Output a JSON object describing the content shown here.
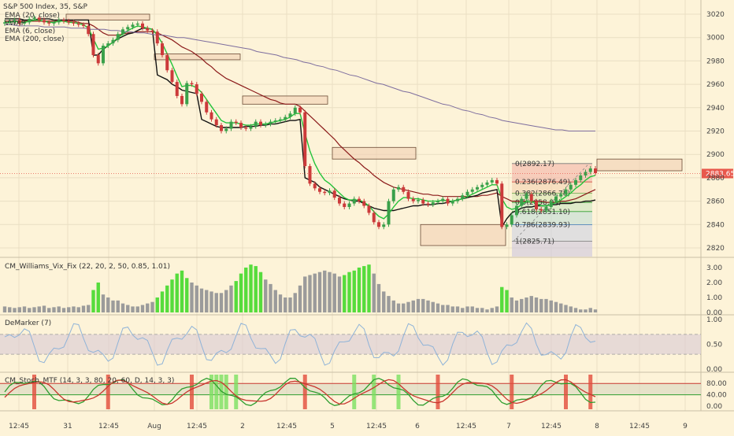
{
  "colors": {
    "background": "#fdf3d8",
    "grid": "#eadfc3",
    "up": "#3aa04a",
    "down": "#cc3a3a",
    "ema20": "#8b1a1a",
    "vwap": "#111111",
    "ema6": "#22c33a",
    "ema200": "#7d6d9e",
    "zone": "#f1ccb0",
    "price_tag": "#e8584c",
    "vix_green": "#56dc3c",
    "vix_gray": "#9b9b9b",
    "demarker": "#8fb3d8",
    "demarker_band": "#d9c9d6",
    "stoch_k": "#2f9e2f",
    "stoch_d": "#c8362e",
    "stoch_band": "#d9d7c0"
  },
  "legend": {
    "symbol": "S&P 500 Index, 35, S&P",
    "ema20": "EMA (20, close)",
    "vwap": "VWAP",
    "ema6": "EMA (6, close)",
    "ema200": "EMA (200, close)"
  },
  "price_tag": "2883.65",
  "fib_labels": [
    "0(2892.17)",
    "0.236(2876.49)",
    "0.382(2866.78)",
    "0.5(2858.94)",
    "0.618(2851.10)",
    "0.786(2839.93)",
    "1(2825.71)"
  ],
  "panels": {
    "vix": {
      "title": "CM_Williams_Vix_Fix (22, 20, 2, 50, 0.85, 1.01)",
      "ticks": [
        "3.00",
        "2.00",
        "1.00",
        "0.00"
      ]
    },
    "demarker": {
      "title": "DeMarker (7)",
      "ticks": [
        "1.00",
        "0.50",
        "0.00"
      ]
    },
    "stoch": {
      "title": "CM_Stoch_MTF (14, 3, 3, 80, 20, 60, D, 14, 3, 3)",
      "ticks": [
        "80.00",
        "40.00",
        "0.00"
      ]
    }
  },
  "chart_data": {
    "type": "candlestick",
    "symbol": "S&P 500 Index, 35, S&P",
    "price_axis": [
      3020,
      3000,
      2980,
      2960,
      2940,
      2920,
      2900,
      2880,
      2860,
      2840,
      2820
    ],
    "time_labels": [
      "12:45",
      "31",
      "12:45",
      "Aug",
      "12:45",
      "2",
      "12:45",
      "5",
      "12:45",
      "6",
      "12:45",
      "7",
      "12:45",
      "8",
      "12:45",
      "9"
    ],
    "last_price": 2883.65,
    "close": [
      3013,
      3014,
      3015,
      3012,
      3013,
      3016,
      3017,
      3015,
      3013,
      3012,
      3013,
      3015,
      3014,
      3013,
      3012,
      3011,
      3010,
      3003,
      2985,
      2978,
      2993,
      2995,
      2998,
      3003,
      3007,
      3009,
      3011,
      3012,
      3008,
      3006,
      3005,
      2995,
      2985,
      2972,
      2962,
      2950,
      2943,
      2961,
      2960,
      2952,
      2945,
      2936,
      2930,
      2925,
      2920,
      2922,
      2928,
      2927,
      2923,
      2922,
      2924,
      2928,
      2925,
      2926,
      2928,
      2929,
      2930,
      2932,
      2935,
      2940,
      2936,
      2890,
      2875,
      2871,
      2868,
      2867,
      2869,
      2863,
      2858,
      2855,
      2858,
      2862,
      2860,
      2856,
      2850,
      2842,
      2838,
      2840,
      2860,
      2870,
      2872,
      2868,
      2862,
      2860,
      2861,
      2858,
      2857,
      2859,
      2860,
      2862,
      2858,
      2860,
      2862,
      2865,
      2868,
      2870,
      2872,
      2874,
      2876,
      2878,
      2875,
      2838,
      2840,
      2848,
      2856,
      2862,
      2866,
      2860,
      2853,
      2852,
      2855,
      2860,
      2864,
      2866,
      2870,
      2874,
      2878,
      2882,
      2885,
      2888,
      2884
    ],
    "series": [
      {
        "name": "EMA (20, close)",
        "values": [
          3014,
          3014,
          3014,
          3014,
          3014,
          3014,
          3014,
          3014,
          3014,
          3014,
          3014,
          3014,
          3014,
          3014,
          3014,
          3013,
          3012,
          3012,
          3010,
          3007,
          3004,
          3002,
          3002,
          3002,
          3003,
          3004,
          3004,
          3005,
          3005,
          3005,
          3005,
          3004,
          3002,
          3000,
          2998,
          2995,
          2992,
          2990,
          2988,
          2985,
          2982,
          2978,
          2975,
          2971,
          2968,
          2965,
          2963,
          2961,
          2959,
          2957,
          2955,
          2953,
          2951,
          2949,
          2947,
          2946,
          2944,
          2943,
          2943,
          2943,
          2941,
          2937,
          2933,
          2929,
          2925,
          2921,
          2917,
          2913,
          2908,
          2904,
          2900,
          2896,
          2893,
          2889,
          2886,
          2882,
          2879,
          2876,
          2874,
          2872,
          2871,
          2870,
          2869,
          2868,
          2867,
          2866,
          2866,
          2865,
          2865,
          2864,
          2864,
          2864,
          2864,
          2864,
          2864,
          2864,
          2864,
          2865,
          2865,
          2866,
          2867,
          2864,
          2862,
          2860,
          2860,
          2860,
          2860,
          2860,
          2860,
          2860,
          2859,
          2859,
          2859,
          2860,
          2860,
          2861,
          2862,
          2864,
          2866,
          2868,
          2870
        ]
      },
      {
        "name": "VWAP",
        "values": [
          3016,
          3016,
          3016,
          3016,
          3015,
          3015,
          3015,
          3016,
          3016,
          3016,
          3015,
          3015,
          3015,
          3015,
          3015,
          3015,
          3015,
          3015,
          2985,
          2985,
          2990,
          2993,
          2996,
          2999,
          3001,
          3003,
          3004,
          3006,
          3008,
          3008,
          3007,
          2968,
          2966,
          2964,
          2960,
          2958,
          2955,
          2954,
          2953,
          2952,
          2930,
          2928,
          2926,
          2924,
          2923,
          2923,
          2923,
          2923,
          2923,
          2924,
          2924,
          2924,
          2925,
          2925,
          2926,
          2926,
          2927,
          2928,
          2929,
          2929,
          2930,
          2880,
          2878,
          2876,
          2872,
          2870,
          2868,
          2866,
          2864,
          2862,
          2861,
          2860,
          2860,
          2858,
          2856,
          2854,
          2853,
          2852,
          2852,
          2852,
          2853,
          2854,
          2855,
          2856,
          2856,
          2857,
          2857,
          2857,
          2858,
          2858,
          2859,
          2860,
          2861,
          2862,
          2863,
          2864,
          2865,
          2867,
          2868,
          2869,
          2870,
          2838,
          2845,
          2850,
          2852,
          2854,
          2855,
          2855,
          2856,
          2856,
          2856,
          2857,
          2857,
          2858,
          2858,
          2858,
          2859,
          2859,
          2860,
          2860,
          2861
        ]
      },
      {
        "name": "EMA (6, close)",
        "values": [
          3013,
          3013,
          3014,
          3013,
          3013,
          3014,
          3015,
          3015,
          3014,
          3013,
          3013,
          3014,
          3014,
          3013,
          3013,
          3012,
          3011,
          3008,
          2999,
          2990,
          2991,
          2993,
          2996,
          3000,
          3003,
          3006,
          3008,
          3010,
          3009,
          3008,
          3007,
          3002,
          2995,
          2986,
          2977,
          2967,
          2958,
          2959,
          2959,
          2957,
          2953,
          2947,
          2941,
          2935,
          2929,
          2927,
          2927,
          2927,
          2926,
          2925,
          2925,
          2926,
          2926,
          2926,
          2927,
          2928,
          2929,
          2930,
          2932,
          2935,
          2935,
          2918,
          2903,
          2892,
          2884,
          2878,
          2875,
          2871,
          2867,
          2863,
          2861,
          2861,
          2861,
          2859,
          2856,
          2851,
          2847,
          2845,
          2849,
          2855,
          2860,
          2863,
          2863,
          2862,
          2862,
          2861,
          2860,
          2860,
          2860,
          2861,
          2860,
          2860,
          2861,
          2862,
          2864,
          2866,
          2868,
          2870,
          2872,
          2874,
          2874,
          2862,
          2855,
          2853,
          2854,
          2857,
          2860,
          2860,
          2858,
          2856,
          2856,
          2857,
          2859,
          2861,
          2864,
          2867,
          2871,
          2874,
          2878,
          2881,
          2882
        ]
      },
      {
        "name": "EMA (200, close)",
        "values": [
          3011,
          3011,
          3010,
          3010,
          3010,
          3010,
          3009,
          3009,
          3009,
          3009,
          3008,
          3008,
          3008,
          3007,
          3007,
          3007,
          3006,
          3006,
          3005,
          3005,
          3004,
          3004,
          3003,
          3002,
          3002,
          3001,
          3000,
          3000,
          2999,
          2998,
          2997,
          2996,
          2995,
          2994,
          2993,
          2992,
          2991,
          2990,
          2988,
          2987,
          2986,
          2985,
          2983,
          2982,
          2981,
          2979,
          2978,
          2976,
          2975,
          2973,
          2972,
          2970,
          2968,
          2967,
          2965,
          2963,
          2961,
          2960,
          2958,
          2956,
          2954,
          2953,
          2951,
          2949,
          2947,
          2945,
          2943,
          2942,
          2940,
          2938,
          2937,
          2935,
          2934,
          2932,
          2931,
          2929,
          2928,
          2927,
          2926,
          2925,
          2924,
          2923,
          2922,
          2921,
          2921,
          2920,
          2920,
          2920,
          2920,
          2920
        ]
      }
    ],
    "zones": [
      {
        "from": 3020,
        "to": 3015
      },
      {
        "from": 2986,
        "to": 2981
      },
      {
        "from": 2950,
        "to": 2943
      },
      {
        "from": 2906,
        "to": 2896
      },
      {
        "from": 2840,
        "to": 2822
      },
      {
        "from": 2896,
        "to": 2886
      }
    ],
    "fibonacci": {
      "levels": [
        0,
        0.236,
        0.382,
        0.5,
        0.618,
        0.786,
        1
      ],
      "prices": [
        2892.17,
        2876.49,
        2866.78,
        2858.94,
        2851.1,
        2839.93,
        2825.71
      ]
    },
    "vix_fix": {
      "ylim": [
        0,
        3.2
      ],
      "values": [
        0.4,
        0.35,
        0.3,
        0.35,
        0.4,
        0.3,
        0.35,
        0.4,
        0.45,
        0.3,
        0.35,
        0.4,
        0.3,
        0.35,
        0.4,
        0.35,
        0.45,
        0.5,
        1.5,
        2.0,
        1.2,
        1.0,
        0.8,
        0.8,
        0.6,
        0.5,
        0.4,
        0.4,
        0.5,
        0.6,
        0.7,
        1.0,
        1.4,
        1.8,
        2.2,
        2.6,
        2.8,
        2.3,
        2.0,
        1.8,
        1.6,
        1.5,
        1.4,
        1.3,
        1.3,
        1.5,
        1.8,
        2.1,
        2.6,
        3.0,
        3.2,
        3.1,
        2.7,
        2.2,
        1.9,
        1.5,
        1.2,
        1.0,
        1.0,
        1.3,
        1.8,
        2.4,
        2.5,
        2.6,
        2.7,
        2.8,
        2.7,
        2.6,
        2.4,
        2.5,
        2.7,
        2.8,
        3.0,
        3.1,
        3.2,
        2.6,
        1.9,
        1.4,
        1.1,
        0.8,
        0.6,
        0.6,
        0.7,
        0.8,
        0.9,
        0.9,
        0.8,
        0.7,
        0.6,
        0.5,
        0.5,
        0.4,
        0.4,
        0.3,
        0.4,
        0.4,
        0.3,
        0.3,
        0.2,
        0.3,
        0.4,
        1.7,
        1.5,
        1.0,
        0.8,
        0.9,
        1.0,
        1.1,
        1.0,
        0.9,
        0.9,
        0.8,
        0.7,
        0.6,
        0.5,
        0.4,
        0.3,
        0.2,
        0.2,
        0.3,
        0.2
      ],
      "green": [
        18,
        19,
        31,
        32,
        33,
        34,
        35,
        36,
        37,
        47,
        48,
        49,
        50,
        51,
        52,
        69,
        70,
        71,
        72,
        73,
        74,
        101,
        102
      ]
    },
    "demarker": {
      "ylim": [
        0,
        1
      ],
      "band": [
        0.3,
        0.7
      ]
    },
    "stoch_mtf": {
      "ylim": [
        0,
        100
      ],
      "bands": [
        80,
        40
      ]
    }
  }
}
